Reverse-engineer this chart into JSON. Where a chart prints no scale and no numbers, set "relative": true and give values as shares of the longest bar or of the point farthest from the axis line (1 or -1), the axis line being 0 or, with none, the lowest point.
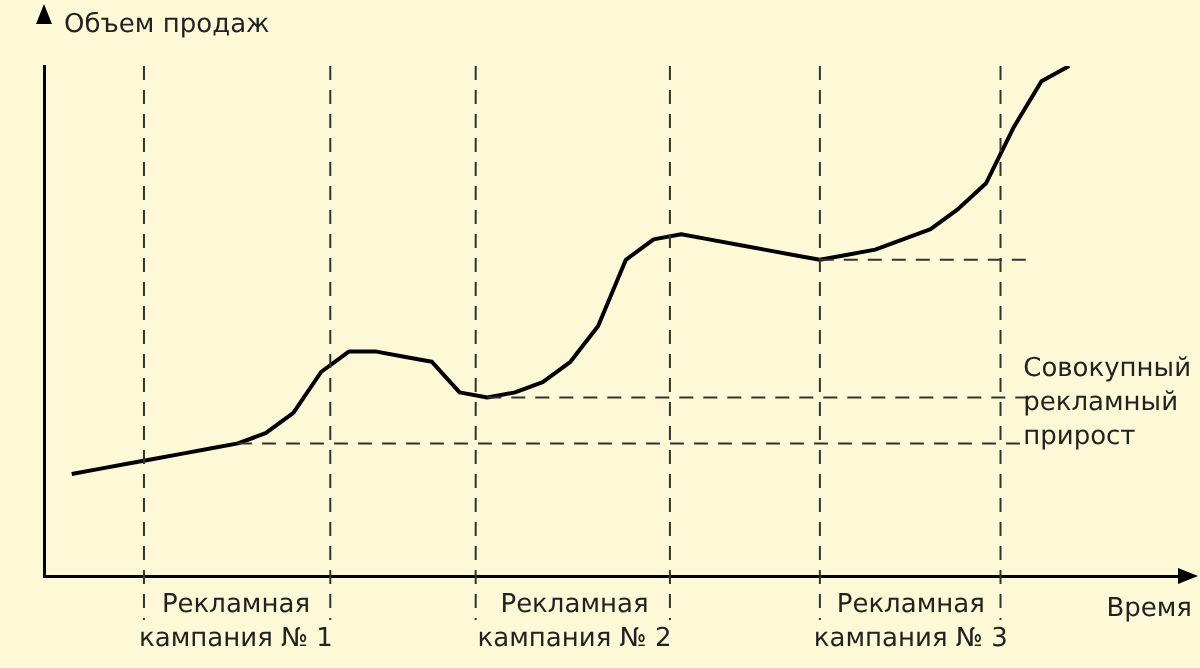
{
  "chart_data": {
    "type": "line",
    "relative": true,
    "xlabel": "Время",
    "ylabel": "Объем продаж",
    "grid": false,
    "legend": false,
    "marker": "none",
    "line_style": "solid",
    "categories": [
      null,
      null,
      null,
      null,
      null,
      null,
      null,
      null,
      null,
      null,
      null,
      null,
      null,
      null,
      null,
      null,
      null,
      null,
      null,
      null,
      null,
      null,
      null,
      null,
      null,
      null,
      null,
      null,
      null,
      null,
      null,
      null,
      null,
      null,
      null,
      null,
      null,
      null,
      null,
      null,
      null,
      null
    ],
    "series": [
      {
        "color": "#000000",
        "values": [
          null,
          0.2,
          0.21,
          0.22,
          0.23,
          0.24,
          0.25,
          0.26,
          0.28,
          0.32,
          0.4,
          0.44,
          0.44,
          0.43,
          0.42,
          0.36,
          0.35,
          0.36,
          0.38,
          0.42,
          0.49,
          0.62,
          0.66,
          0.67,
          0.66,
          0.65,
          0.64,
          0.63,
          0.62,
          0.63,
          0.64,
          0.66,
          0.68,
          0.72,
          0.77,
          0.88,
          0.97,
          1.0,
          null,
          null,
          null,
          null
        ]
      }
    ],
    "ref_lines": [
      {
        "axis": "y",
        "value": 0.26,
        "line_style": "dashed"
      },
      {
        "axis": "y",
        "value": 0.35,
        "line_style": "dashed"
      },
      {
        "axis": "y",
        "value": 0.62,
        "line_style": "dashed"
      }
    ],
    "annotations": [
      "Рекламная кампания № 1",
      "Рекламная кампания № 2",
      "Рекламная кампания № 3",
      "Совокупный рекламный прирост"
    ]
  }
}
